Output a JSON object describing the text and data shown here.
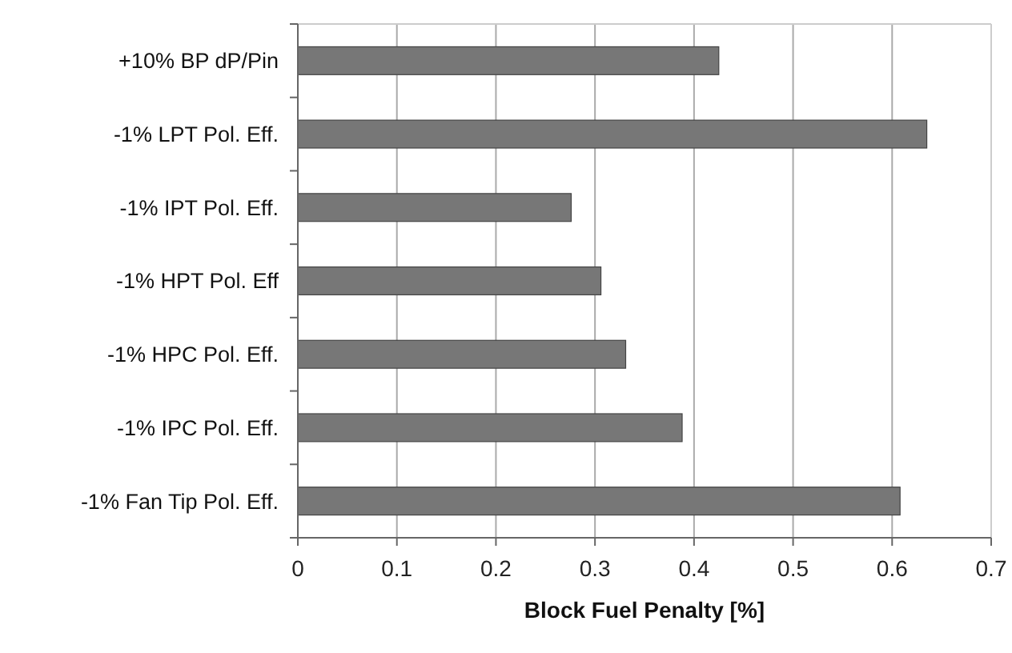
{
  "chart_data": {
    "type": "bar",
    "orientation": "horizontal",
    "xlabel": "Block Fuel Penalty [%]",
    "categories": [
      "+10% BP dP/Pin",
      "-1% LPT Pol. Eff.",
      "-1% IPT Pol. Eff.",
      "-1% HPT Pol. Eff",
      "-1% HPC Pol. Eff.",
      "-1% IPC Pol. Eff.",
      "-1% Fan Tip Pol. Eff."
    ],
    "values": [
      0.425,
      0.635,
      0.276,
      0.306,
      0.331,
      0.388,
      0.608
    ],
    "color": "#777777",
    "xlim": [
      0,
      0.7
    ],
    "xticks": [
      0,
      0.1,
      0.2,
      0.3,
      0.4,
      0.5,
      0.6,
      0.7
    ],
    "grid": "x"
  }
}
